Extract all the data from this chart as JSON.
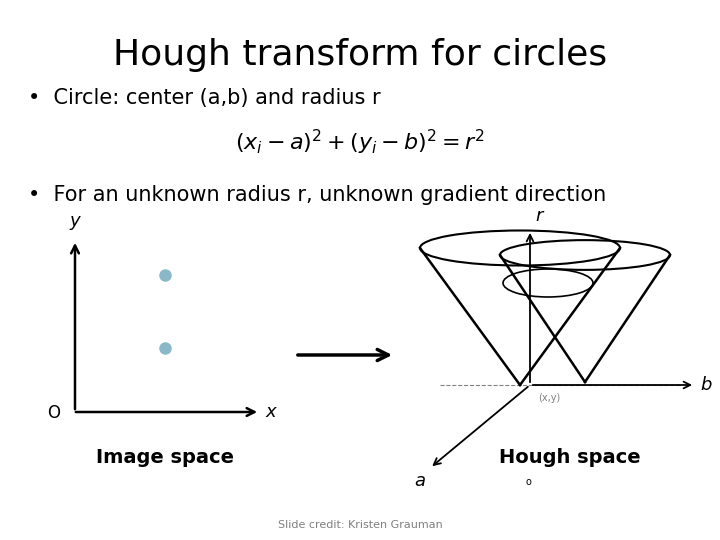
{
  "title": "Hough transform for circles",
  "bullet1": "•  Circle: center (a,b) and radius r",
  "formula": "$(x_i - a)^2 + (y_i - b)^2 = r^2$",
  "bullet2": "•  For an unknown radius r, unknown gradient direction",
  "label_image_space": "Image space",
  "label_hough_space": "Hough space",
  "slide_credit": "Slide credit: Kristen Grauman",
  "dot_color": "#8ab8c8",
  "bg_color": "#ffffff",
  "text_color": "#000000",
  "title_fontsize": 26,
  "bullet_fontsize": 15,
  "formula_fontsize": 16,
  "label_fontsize": 14
}
